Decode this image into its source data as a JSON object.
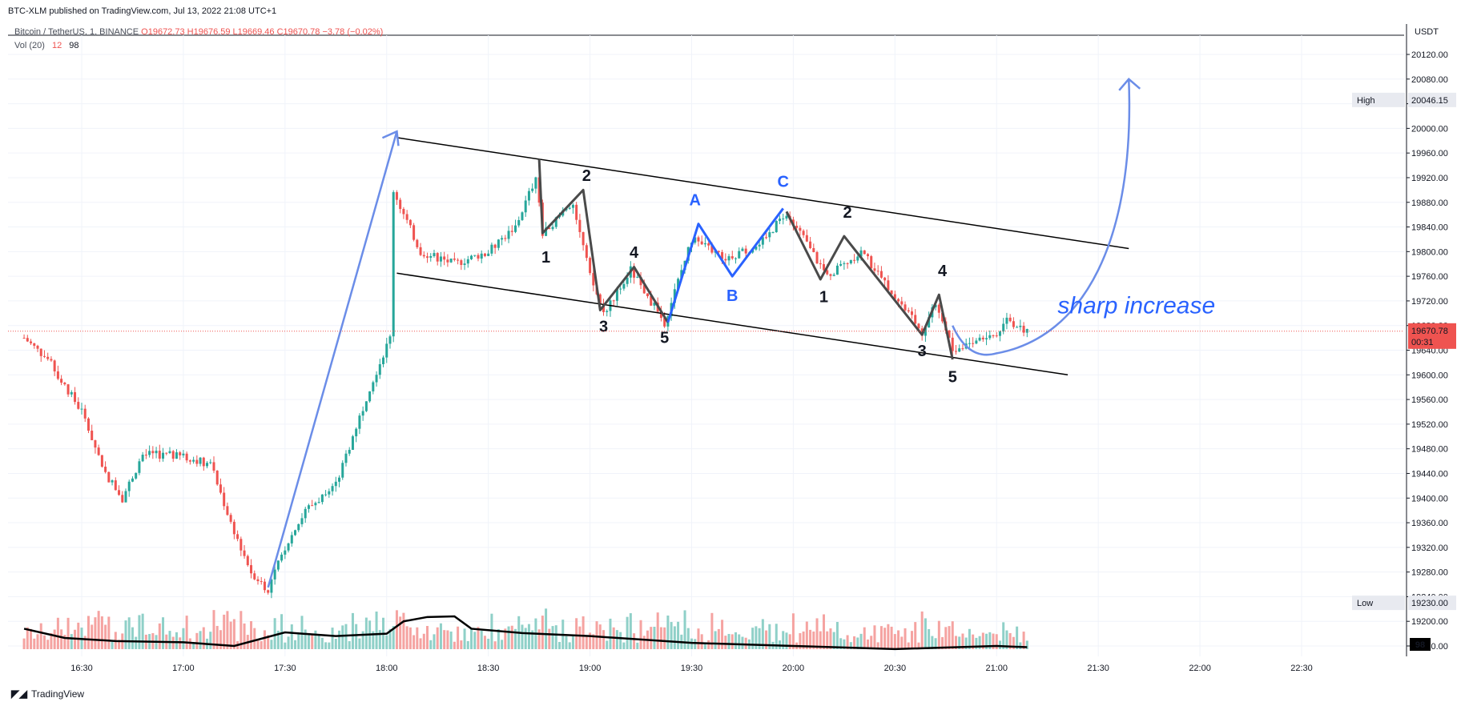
{
  "header": {
    "publish_text": "BTC-XLM published on TradingView.com, Jul 13, 2022 21:08 UTC+1",
    "symbol_line": "Bitcoin / TetherUS, 1, BINANCE",
    "ohlc": "O19672.73  H19676.59  L19669.46  C19670.78  −3.78 (−0.02%)",
    "vol_label": "Vol (20)",
    "vol_value1": "12",
    "vol_value2": "98",
    "unit": "USDT"
  },
  "footer": {
    "brand": "TradingView"
  },
  "price_badges": {
    "high_label": "High",
    "high_value": "20046.15",
    "low_label": "Low",
    "low_value": "19230.00",
    "last_price": "19670.78",
    "countdown": "00:31",
    "volume_value": "98"
  },
  "colors": {
    "up": "#26a69a",
    "down": "#ef5350",
    "up_volume": "#8fd0c8",
    "down_volume": "#f5a3a1",
    "wave_black": "#4a4a4a",
    "wave_blue": "#2962ff",
    "arrow_blue": "#6b8de8",
    "grid": "#f0f3fa"
  },
  "chart_data": {
    "type": "candlestick",
    "y_ticks": [
      20120,
      20080,
      20040,
      20000,
      19960,
      19920,
      19880,
      19840,
      19800,
      19760,
      19720,
      19680,
      19640,
      19600,
      19560,
      19520,
      19480,
      19440,
      19400,
      19360,
      19320,
      19280,
      19240,
      19200,
      19160
    ],
    "x_ticks": [
      "16:30",
      "17:00",
      "17:30",
      "18:00",
      "18:30",
      "19:00",
      "19:30",
      "20:00",
      "20:30",
      "21:00",
      "21:30",
      "22:00",
      "22:30"
    ],
    "price_path": [
      [
        "16:13",
        19660
      ],
      [
        "16:20",
        19625
      ],
      [
        "16:30",
        19540
      ],
      [
        "16:37",
        19440
      ],
      [
        "16:42",
        19400
      ],
      [
        "16:48",
        19470
      ],
      [
        "16:55",
        19470
      ],
      [
        "17:02",
        19465
      ],
      [
        "17:08",
        19455
      ],
      [
        "17:14",
        19360
      ],
      [
        "17:20",
        19280
      ],
      [
        "17:25",
        19252
      ],
      [
        "17:30",
        19320
      ],
      [
        "17:36",
        19380
      ],
      [
        "17:45",
        19420
      ],
      [
        "17:55",
        19580
      ],
      [
        "18:01",
        19660
      ],
      [
        "18:02",
        19900
      ],
      [
        "18:05",
        19860
      ],
      [
        "18:10",
        19800
      ],
      [
        "18:20",
        19780
      ],
      [
        "18:30",
        19800
      ],
      [
        "18:38",
        19840
      ],
      [
        "18:44",
        19920
      ],
      [
        "18:46",
        19830
      ],
      [
        "18:55",
        19880
      ],
      [
        "19:00",
        19760
      ],
      [
        "19:04",
        19700
      ],
      [
        "19:12",
        19770
      ],
      [
        "19:22",
        19685
      ],
      [
        "19:30",
        19820
      ],
      [
        "19:40",
        19790
      ],
      [
        "19:50",
        19810
      ],
      [
        "19:58",
        19865
      ],
      [
        "20:10",
        19760
      ],
      [
        "20:20",
        19800
      ],
      [
        "20:30",
        19730
      ],
      [
        "20:38",
        19670
      ],
      [
        "20:42",
        19720
      ],
      [
        "20:47",
        19640
      ],
      [
        "20:55",
        19660
      ],
      [
        "21:00",
        19665
      ],
      [
        "21:03",
        19690
      ],
      [
        "21:09",
        19670
      ]
    ],
    "volume_ma_path": [
      [
        "16:13",
        19188
      ],
      [
        "16:25",
        19173
      ],
      [
        "16:40",
        19168
      ],
      [
        "17:00",
        19166
      ],
      [
        "17:15",
        19160
      ],
      [
        "17:30",
        19182
      ],
      [
        "17:45",
        19176
      ],
      [
        "18:00",
        19180
      ],
      [
        "18:05",
        19200
      ],
      [
        "18:12",
        19207
      ],
      [
        "18:20",
        19208
      ],
      [
        "18:25",
        19188
      ],
      [
        "18:40",
        19181
      ],
      [
        "19:00",
        19176
      ],
      [
        "19:30",
        19165
      ],
      [
        "20:00",
        19160
      ],
      [
        "20:30",
        19155
      ],
      [
        "21:00",
        19160
      ],
      [
        "21:09",
        19158
      ]
    ],
    "channel": {
      "upper": [
        [
          "18:03",
          19985
        ],
        [
          "21:39",
          19805
        ]
      ],
      "lower": [
        [
          "18:03",
          19765
        ],
        [
          "21:21",
          19600
        ]
      ]
    },
    "wave_black": [
      [
        [
          "18:45",
          19950
        ],
        [
          "18:46",
          19830
        ],
        [
          "18:58",
          19900
        ],
        [
          "19:03",
          19705
        ],
        [
          "19:13",
          19775
        ],
        [
          "19:23",
          19685
        ]
      ],
      [
        [
          "19:58",
          19865
        ],
        [
          "20:08",
          19755
        ],
        [
          "20:15",
          19825
        ],
        [
          "20:38",
          19665
        ],
        [
          "20:43",
          19730
        ],
        [
          "20:47",
          19625
        ]
      ]
    ],
    "wave_blue": [
      [
        "19:23",
        19685
      ],
      [
        "19:32",
        19845
      ],
      [
        "19:42",
        19760
      ],
      [
        "19:57",
        19870
      ]
    ],
    "wave_labels": [
      {
        "text": "1",
        "x": "18:47",
        "y": 19782,
        "color": "black"
      },
      {
        "text": "2",
        "x": "18:59",
        "y": 19915,
        "color": "black"
      },
      {
        "text": "3",
        "x": "19:04",
        "y": 19670,
        "color": "black"
      },
      {
        "text": "4",
        "x": "19:13",
        "y": 19790,
        "color": "black"
      },
      {
        "text": "5",
        "x": "19:22",
        "y": 19652,
        "color": "black"
      },
      {
        "text": "A",
        "x": "19:31",
        "y": 19875,
        "color": "blue"
      },
      {
        "text": "B",
        "x": "19:42",
        "y": 19720,
        "color": "blue"
      },
      {
        "text": "C",
        "x": "19:57",
        "y": 19905,
        "color": "blue"
      },
      {
        "text": "1",
        "x": "20:09",
        "y": 19718,
        "color": "black"
      },
      {
        "text": "2",
        "x": "20:16",
        "y": 19855,
        "color": "black"
      },
      {
        "text": "3",
        "x": "20:38",
        "y": 19630,
        "color": "black"
      },
      {
        "text": "4",
        "x": "20:44",
        "y": 19760,
        "color": "black"
      },
      {
        "text": "5",
        "x": "20:47",
        "y": 19588,
        "color": "black"
      }
    ],
    "arrows": [
      {
        "from": [
          "17:25",
          19255
        ],
        "to": [
          "18:03",
          19995
        ]
      },
      {
        "from": [
          "20:47",
          19680
        ],
        "curve_low": [
          "21:00",
          19635
        ],
        "to": [
          "21:39",
          20080
        ]
      }
    ],
    "annotation": {
      "text": "sharp increase",
      "x": "21:18",
      "y": 19700
    },
    "current_price": 19670.78,
    "high": 20046.15,
    "low": 19230.0
  }
}
